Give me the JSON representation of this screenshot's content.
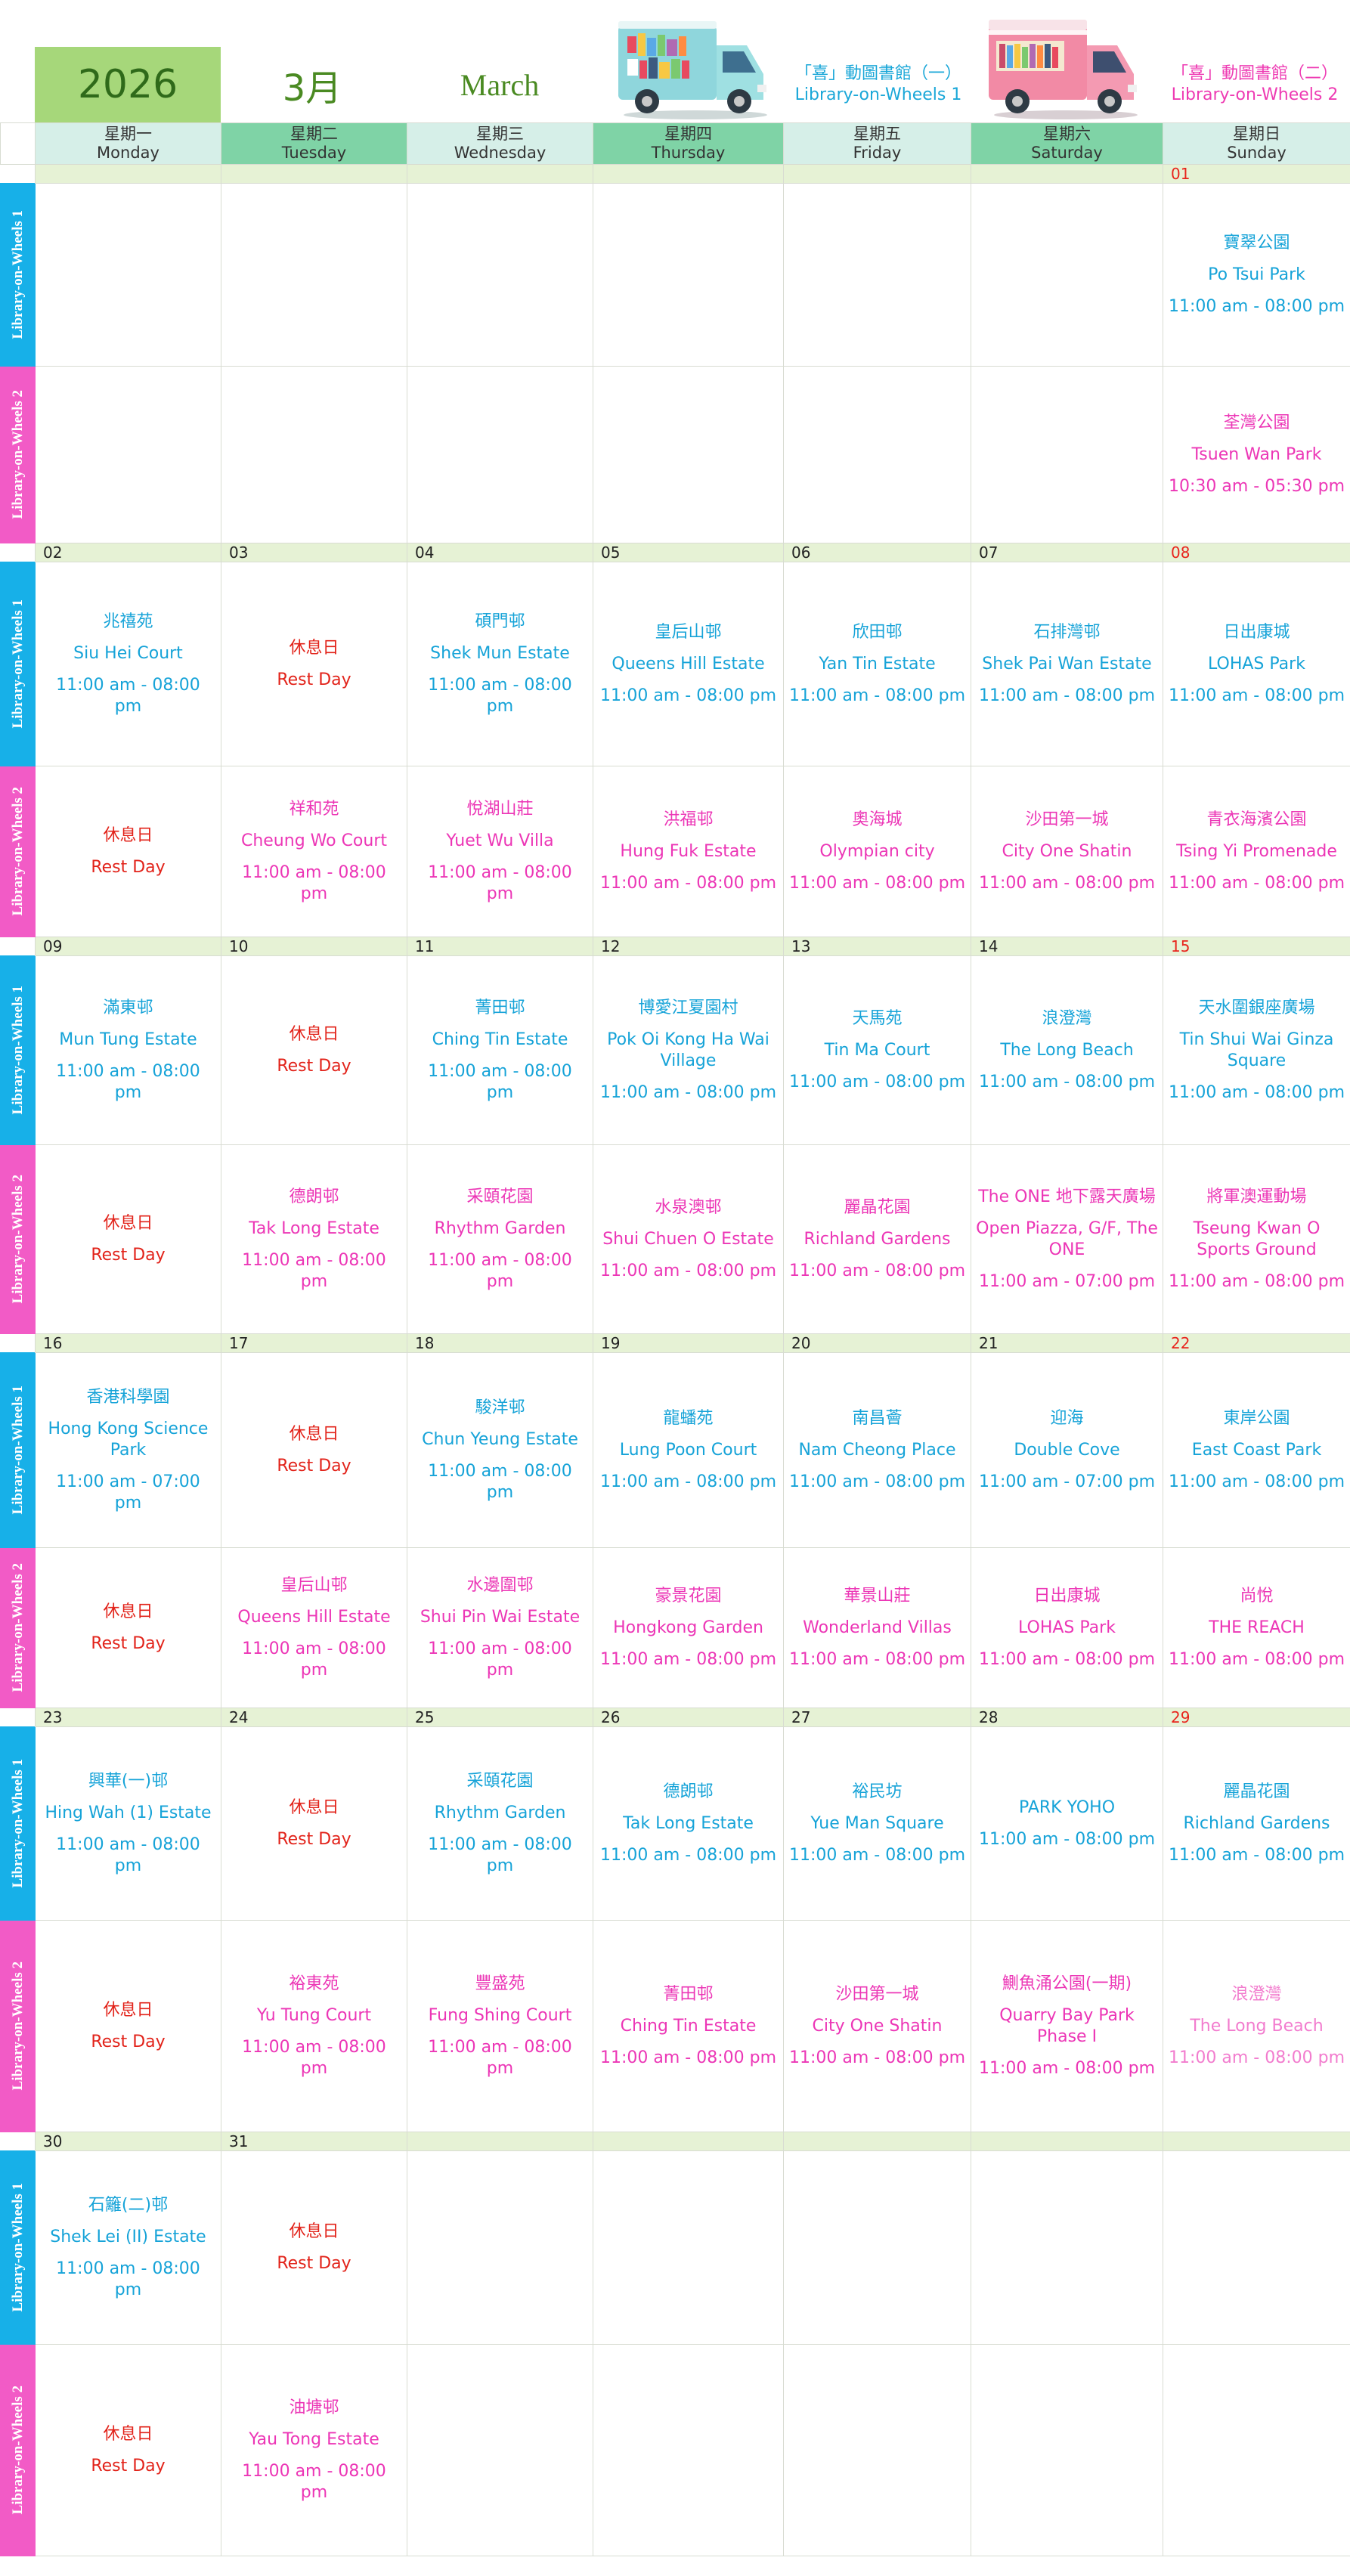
{
  "header": {
    "year": "2026",
    "month_zh": "3月",
    "month_en": "March",
    "lib1_title_zh": "「喜」動圖書館（一）",
    "lib1_title_en": "Library-on-Wheels 1",
    "lib2_title_zh": "「喜」動圖書館（二）",
    "lib2_title_en": "Library-on-Wheels 2"
  },
  "colors": {
    "lib1": "#16a3d8",
    "lib2": "#ec36b6",
    "rest": "#e2231a",
    "year_bg": "#a6d77a"
  },
  "weekdays": [
    {
      "zh": "星期一",
      "en": "Monday"
    },
    {
      "zh": "星期二",
      "en": "Tuesday"
    },
    {
      "zh": "星期三",
      "en": "Wednesday"
    },
    {
      "zh": "星期四",
      "en": "Thursday"
    },
    {
      "zh": "星期五",
      "en": "Friday"
    },
    {
      "zh": "星期六",
      "en": "Saturday"
    },
    {
      "zh": "星期日",
      "en": "Sunday"
    }
  ],
  "row_labels": {
    "w1": "Library-on-Wheels 1",
    "w2": "Library-on-Wheels 2"
  },
  "weeks": [
    {
      "dates": [
        "",
        "",
        "",
        "",
        "",
        "",
        "01"
      ],
      "w1": [
        {
          "zh": "",
          "en": "",
          "time": ""
        },
        {
          "zh": "",
          "en": "",
          "time": ""
        },
        {
          "zh": "",
          "en": "",
          "time": ""
        },
        {
          "zh": "",
          "en": "",
          "time": ""
        },
        {
          "zh": "",
          "en": "",
          "time": ""
        },
        {
          "zh": "",
          "en": "",
          "time": ""
        },
        {
          "zh": "寶翠公園",
          "en": "Po Tsui Park",
          "time": "11:00 am - 08:00 pm"
        }
      ],
      "w2": [
        {
          "zh": "",
          "en": "",
          "time": ""
        },
        {
          "zh": "",
          "en": "",
          "time": ""
        },
        {
          "zh": "",
          "en": "",
          "time": ""
        },
        {
          "zh": "",
          "en": "",
          "time": ""
        },
        {
          "zh": "",
          "en": "",
          "time": ""
        },
        {
          "zh": "",
          "en": "",
          "time": ""
        },
        {
          "zh": "荃灣公園",
          "en": "Tsuen Wan Park",
          "time": "10:30 am - 05:30 pm"
        }
      ]
    },
    {
      "dates": [
        "02",
        "03",
        "04",
        "05",
        "06",
        "07",
        "08"
      ],
      "w1": [
        {
          "zh": "兆禧苑",
          "en": "Siu Hei Court",
          "time": "11:00 am - 08:00 pm"
        },
        {
          "zh": "休息日",
          "en": "Rest Day",
          "time": "",
          "rest": true
        },
        {
          "zh": "碩門邨",
          "en": "Shek Mun Estate",
          "time": "11:00 am - 08:00 pm"
        },
        {
          "zh": "皇后山邨",
          "en": "Queens Hill Estate",
          "time": "11:00 am - 08:00 pm"
        },
        {
          "zh": "欣田邨",
          "en": "Yan Tin Estate",
          "time": "11:00 am - 08:00 pm"
        },
        {
          "zh": "石排灣邨",
          "en": "Shek Pai Wan Estate",
          "time": "11:00 am - 08:00 pm"
        },
        {
          "zh": "日出康城",
          "en": "LOHAS Park",
          "time": "11:00 am - 08:00 pm"
        }
      ],
      "w2": [
        {
          "zh": "休息日",
          "en": "Rest Day",
          "time": "",
          "rest": true
        },
        {
          "zh": "祥和苑",
          "en": "Cheung Wo Court",
          "time": "11:00 am - 08:00 pm"
        },
        {
          "zh": "悅湖山莊",
          "en": "Yuet Wu Villa",
          "time": "11:00 am - 08:00 pm"
        },
        {
          "zh": "洪福邨",
          "en": "Hung Fuk Estate",
          "time": "11:00 am - 08:00 pm"
        },
        {
          "zh": "奧海城",
          "en": "Olympian city",
          "time": "11:00 am - 08:00 pm"
        },
        {
          "zh": "沙田第一城",
          "en": "City One Shatin",
          "time": "11:00 am - 08:00 pm"
        },
        {
          "zh": "青衣海濱公園",
          "en": "Tsing Yi Promenade",
          "time": "11:00 am - 08:00 pm"
        }
      ]
    },
    {
      "dates": [
        "09",
        "10",
        "11",
        "12",
        "13",
        "14",
        "15"
      ],
      "w1": [
        {
          "zh": "滿東邨",
          "en": "Mun Tung Estate",
          "time": "11:00 am - 08:00 pm"
        },
        {
          "zh": "休息日",
          "en": "Rest Day",
          "time": "",
          "rest": true
        },
        {
          "zh": "菁田邨",
          "en": "Ching Tin Estate",
          "time": "11:00 am - 08:00 pm"
        },
        {
          "zh": "博愛江夏園村",
          "en": "Pok Oi Kong Ha Wai Village",
          "time": "11:00 am - 08:00 pm"
        },
        {
          "zh": "天馬苑",
          "en": "Tin Ma Court",
          "time": "11:00 am - 08:00 pm"
        },
        {
          "zh": "浪澄灣",
          "en": "The Long Beach",
          "time": "11:00 am - 08:00 pm"
        },
        {
          "zh": "天水圍銀座廣場",
          "en": "Tin Shui Wai Ginza Square",
          "time": "11:00 am - 08:00 pm"
        }
      ],
      "w2": [
        {
          "zh": "休息日",
          "en": "Rest Day",
          "time": "",
          "rest": true
        },
        {
          "zh": "德朗邨",
          "en": "Tak Long Estate",
          "time": "11:00 am - 08:00 pm"
        },
        {
          "zh": "采頤花園",
          "en": "Rhythm Garden",
          "time": "11:00 am - 08:00 pm"
        },
        {
          "zh": "水泉澳邨",
          "en": "Shui Chuen O Estate",
          "time": "11:00 am - 08:00 pm"
        },
        {
          "zh": "麗晶花園",
          "en": "Richland Gardens",
          "time": "11:00 am - 08:00 pm"
        },
        {
          "zh": "The ONE 地下露天廣場",
          "en": "Open Piazza, G/F, The ONE",
          "time": "11:00 am - 07:00 pm"
        },
        {
          "zh": "將軍澳運動場",
          "en": "Tseung Kwan O Sports Ground",
          "time": "11:00 am - 08:00 pm"
        }
      ]
    },
    {
      "dates": [
        "16",
        "17",
        "18",
        "19",
        "20",
        "21",
        "22"
      ],
      "w1": [
        {
          "zh": "香港科學園",
          "en": "Hong Kong Science Park",
          "time": "11:00 am - 07:00 pm"
        },
        {
          "zh": "休息日",
          "en": "Rest Day",
          "time": "",
          "rest": true
        },
        {
          "zh": "駿洋邨",
          "en": "Chun Yeung Estate",
          "time": "11:00 am - 08:00 pm"
        },
        {
          "zh": "龍蟠苑",
          "en": "Lung Poon Court",
          "time": "11:00 am - 08:00 pm"
        },
        {
          "zh": "南昌薈",
          "en": "Nam Cheong Place",
          "time": "11:00 am - 08:00 pm"
        },
        {
          "zh": "迎海",
          "en": "Double Cove",
          "time": "11:00 am - 07:00 pm"
        },
        {
          "zh": "東岸公園",
          "en": "East Coast Park",
          "time": "11:00 am - 08:00 pm"
        }
      ],
      "w2": [
        {
          "zh": "休息日",
          "en": "Rest Day",
          "time": "",
          "rest": true
        },
        {
          "zh": "皇后山邨",
          "en": "Queens Hill Estate",
          "time": "11:00 am - 08:00 pm"
        },
        {
          "zh": "水邊圍邨",
          "en": "Shui Pin Wai Estate",
          "time": "11:00 am - 08:00 pm"
        },
        {
          "zh": "豪景花園",
          "en": "Hongkong Garden",
          "time": "11:00 am - 08:00 pm"
        },
        {
          "zh": "華景山莊",
          "en": "Wonderland Villas",
          "time": "11:00 am - 08:00 pm"
        },
        {
          "zh": "日出康城",
          "en": "LOHAS Park",
          "time": "11:00 am - 08:00 pm"
        },
        {
          "zh": "尚悅",
          "en": "THE REACH",
          "time": "11:00 am - 08:00 pm"
        }
      ]
    },
    {
      "dates": [
        "23",
        "24",
        "25",
        "26",
        "27",
        "28",
        "29"
      ],
      "w1": [
        {
          "zh": "興華(一)邨",
          "en": "Hing Wah (1) Estate",
          "time": "11:00 am - 08:00 pm"
        },
        {
          "zh": "休息日",
          "en": "Rest Day",
          "time": "",
          "rest": true
        },
        {
          "zh": "采頤花園",
          "en": "Rhythm Garden",
          "time": "11:00 am - 08:00 pm"
        },
        {
          "zh": "德朗邨",
          "en": "Tak Long Estate",
          "time": "11:00 am - 08:00 pm"
        },
        {
          "zh": "裕民坊",
          "en": "Yue Man Square",
          "time": "11:00 am - 08:00 pm"
        },
        {
          "zh": "PARK YOHO",
          "en": "",
          "time": "11:00 am - 08:00 pm"
        },
        {
          "zh": "麗晶花園",
          "en": "Richland Gardens",
          "time": "11:00 am - 08:00 pm"
        }
      ],
      "w2": [
        {
          "zh": "休息日",
          "en": "Rest Day",
          "time": "",
          "rest": true
        },
        {
          "zh": "裕東苑",
          "en": "Yu Tung Court",
          "time": "11:00 am - 08:00 pm"
        },
        {
          "zh": "豐盛苑",
          "en": "Fung Shing Court",
          "time": "11:00 am - 08:00 pm"
        },
        {
          "zh": "菁田邨",
          "en": "Ching Tin Estate",
          "time": "11:00 am - 08:00 pm"
        },
        {
          "zh": "沙田第一城",
          "en": "City One Shatin",
          "time": "11:00 am - 08:00 pm"
        },
        {
          "zh": "鰂魚涌公園(一期)",
          "en": "Quarry Bay Park Phase I",
          "time": "11:00 am - 08:00 pm"
        },
        {
          "zh": "浪澄灣",
          "en": "The Long Beach",
          "time": "11:00 am - 08:00 pm",
          "light": true
        }
      ]
    },
    {
      "dates": [
        "30",
        "31",
        "",
        "",
        "",
        "",
        ""
      ],
      "w1": [
        {
          "zh": "石籬(二)邨",
          "en": "Shek Lei (II) Estate",
          "time": "11:00 am - 08:00 pm"
        },
        {
          "zh": "休息日",
          "en": "Rest Day",
          "time": "",
          "rest": true
        },
        {
          "zh": "",
          "en": "",
          "time": ""
        },
        {
          "zh": "",
          "en": "",
          "time": ""
        },
        {
          "zh": "",
          "en": "",
          "time": ""
        },
        {
          "zh": "",
          "en": "",
          "time": ""
        },
        {
          "zh": "",
          "en": "",
          "time": ""
        }
      ],
      "w2": [
        {
          "zh": "休息日",
          "en": "Rest Day",
          "time": "",
          "rest": true
        },
        {
          "zh": "油塘邨",
          "en": "Yau Tong Estate",
          "time": "11:00 am - 08:00 pm"
        },
        {
          "zh": "",
          "en": "",
          "time": ""
        },
        {
          "zh": "",
          "en": "",
          "time": ""
        },
        {
          "zh": "",
          "en": "",
          "time": ""
        },
        {
          "zh": "",
          "en": "",
          "time": ""
        },
        {
          "zh": "",
          "en": "",
          "time": ""
        }
      ]
    }
  ]
}
